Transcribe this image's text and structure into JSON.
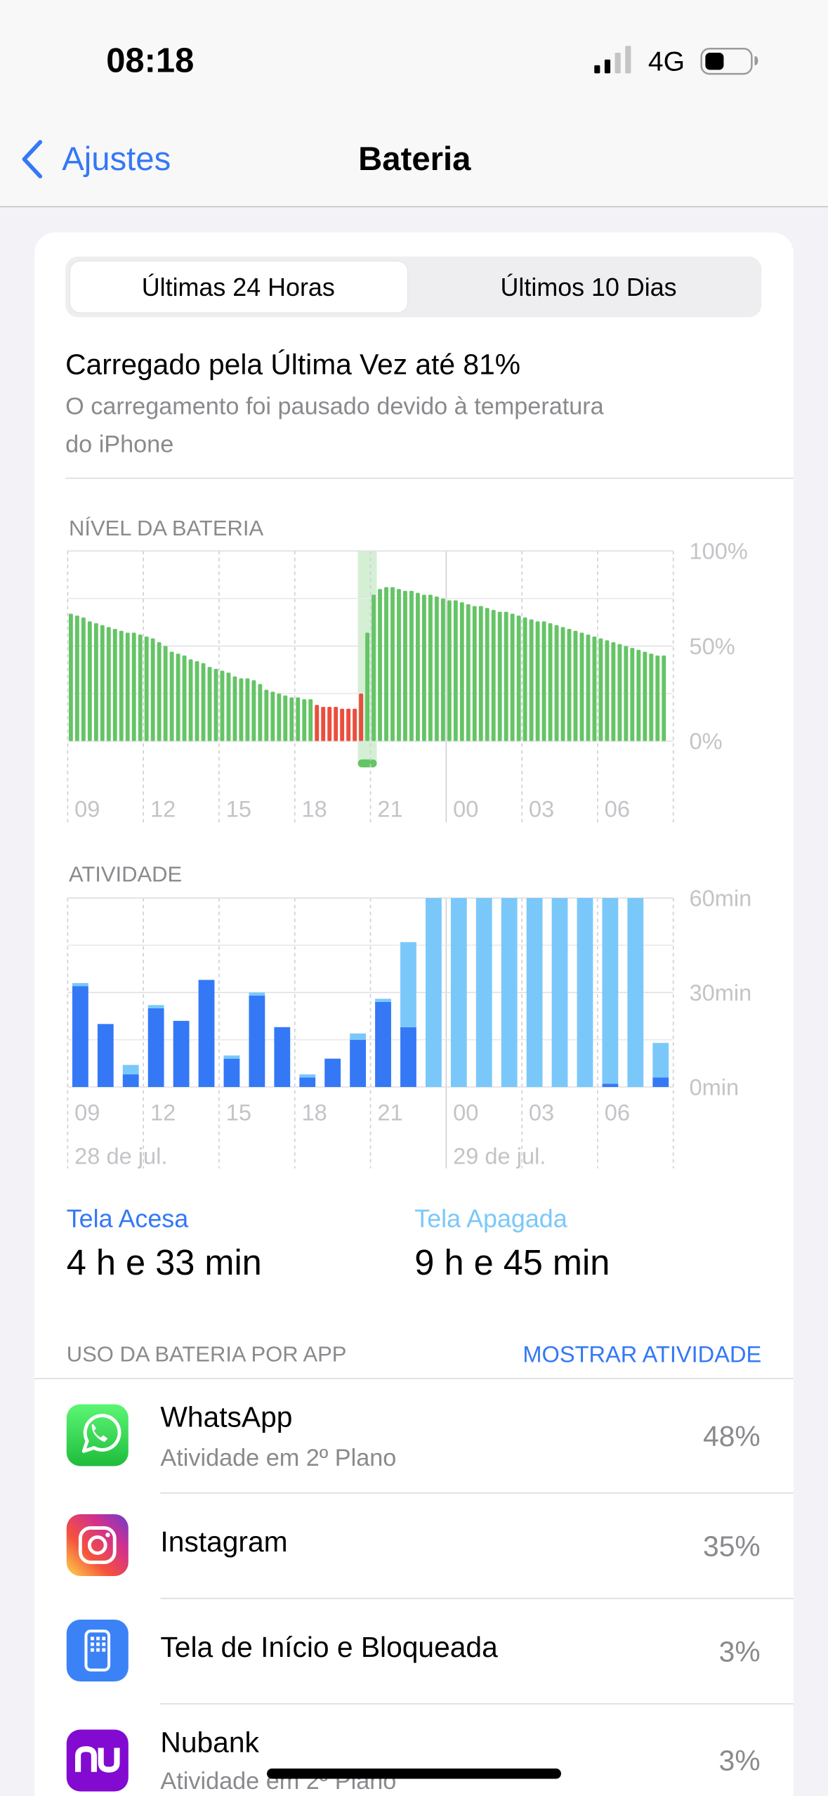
{
  "status_bar": {
    "time": "08:18",
    "network": "4G"
  },
  "nav": {
    "back": "Ajustes",
    "title": "Bateria"
  },
  "segments": [
    "Últimas 24 Horas",
    "Últimos 10 Dias"
  ],
  "last_charge": {
    "title": "Carregado pela Última Vez até 81%",
    "message_lines": [
      "O carregamento foi pausado devido à temperatura",
      "do iPhone"
    ]
  },
  "chart_data": [
    {
      "type": "bar",
      "title": "NÍVEL DA BATERIA",
      "xtick_labels": [
        "09",
        "12",
        "15",
        "18",
        "21",
        "00",
        "03",
        "06"
      ],
      "ylim": [
        0,
        100
      ],
      "yticks": [
        {
          "value": 0,
          "label": "0%"
        },
        {
          "value": 50,
          "label": "50%"
        },
        {
          "value": 100,
          "label": "100%"
        }
      ],
      "minor_yticks": [
        25,
        75
      ],
      "series": [
        {
          "color": "#65c466",
          "values": [
            67,
            66,
            65,
            63,
            62,
            61,
            60,
            59,
            58,
            57,
            57,
            56,
            55,
            54,
            52,
            50,
            47,
            46,
            45,
            43,
            42,
            41,
            39,
            38,
            37,
            36,
            34,
            33,
            33,
            32,
            30,
            27,
            26,
            25,
            24,
            23,
            23,
            22,
            22,
            null,
            null,
            null,
            null,
            null,
            null,
            null,
            null,
            57,
            77,
            80,
            81,
            81,
            80,
            79,
            79,
            78,
            77,
            77,
            76,
            75,
            74,
            74,
            73,
            72,
            71,
            71,
            70,
            69,
            68,
            68,
            67,
            66,
            65,
            64,
            63,
            63,
            62,
            61,
            60,
            59,
            58,
            57,
            56,
            55,
            54,
            53,
            52,
            51,
            50,
            49,
            48,
            47,
            46,
            45,
            45
          ]
        },
        {
          "color": "#eb4e3d",
          "values": [
            null,
            null,
            null,
            null,
            null,
            null,
            null,
            null,
            null,
            null,
            null,
            null,
            null,
            null,
            null,
            null,
            null,
            null,
            null,
            null,
            null,
            null,
            null,
            null,
            null,
            null,
            null,
            null,
            null,
            null,
            null,
            null,
            null,
            null,
            null,
            null,
            null,
            null,
            null,
            19,
            18,
            18,
            18,
            17,
            17,
            17,
            25,
            null,
            null,
            null,
            null,
            null,
            null,
            null,
            null,
            null,
            null,
            null,
            null,
            null,
            null,
            null,
            null,
            null,
            null,
            null,
            null,
            null,
            null,
            null,
            null,
            null,
            null,
            null,
            null,
            null,
            null,
            null,
            null,
            null,
            null,
            null,
            null,
            null,
            null,
            null,
            null,
            null,
            null,
            null,
            null,
            null,
            null,
            null,
            null
          ]
        }
      ]
    },
    {
      "type": "stacked_bar",
      "title": "ATIVIDADE",
      "categories": [
        "09",
        null,
        null,
        "12",
        null,
        null,
        "15",
        null,
        null,
        "18",
        null,
        null,
        "21",
        null,
        null,
        "00",
        null,
        null,
        "03",
        null,
        null,
        "06",
        null,
        null
      ],
      "dates": [
        "28 de jul.",
        null,
        null,
        null,
        null,
        null,
        null,
        null,
        null,
        null,
        null,
        null,
        null,
        null,
        null,
        "29 de jul.",
        null,
        null,
        null,
        null,
        null,
        null,
        null,
        null
      ],
      "ylim": [
        0,
        60
      ],
      "yticks": [
        {
          "value": 0,
          "label": "0min"
        },
        {
          "value": 30,
          "label": "30min"
        },
        {
          "value": 60,
          "label": "60min"
        }
      ],
      "minor_yticks": [
        15,
        45
      ],
      "series": [
        {
          "name": "Tela Acesa",
          "color": "#3478f6",
          "total": "4 h e 33 min",
          "values": [
            32,
            20,
            4,
            25,
            21,
            34,
            9,
            29,
            19,
            3,
            9,
            15,
            27,
            19,
            0,
            0,
            0,
            0,
            0,
            0,
            0,
            1,
            0,
            3
          ]
        },
        {
          "name": "Tela Apagada",
          "color": "#7ac8fa",
          "total": "9 h e 45 min",
          "values": [
            1,
            0,
            3,
            1,
            0,
            0,
            1,
            1,
            0,
            1,
            0,
            2,
            1,
            27,
            60,
            60,
            60,
            60,
            60,
            60,
            60,
            59,
            60,
            11
          ]
        }
      ]
    }
  ],
  "app_usage": {
    "title": "USO DA BATERIA POR APP",
    "action": "MOSTRAR ATIVIDADE",
    "apps": [
      {
        "name": "WhatsApp",
        "detail": "Atividade em 2º Plano",
        "share": "48%"
      },
      {
        "name": "Instagram",
        "share": "35%"
      },
      {
        "name": "Tela de Início e Bloqueada",
        "share": "3%"
      },
      {
        "name": "Nubank",
        "detail": "Atividade em 2º Plano",
        "share": "3%"
      }
    ]
  }
}
